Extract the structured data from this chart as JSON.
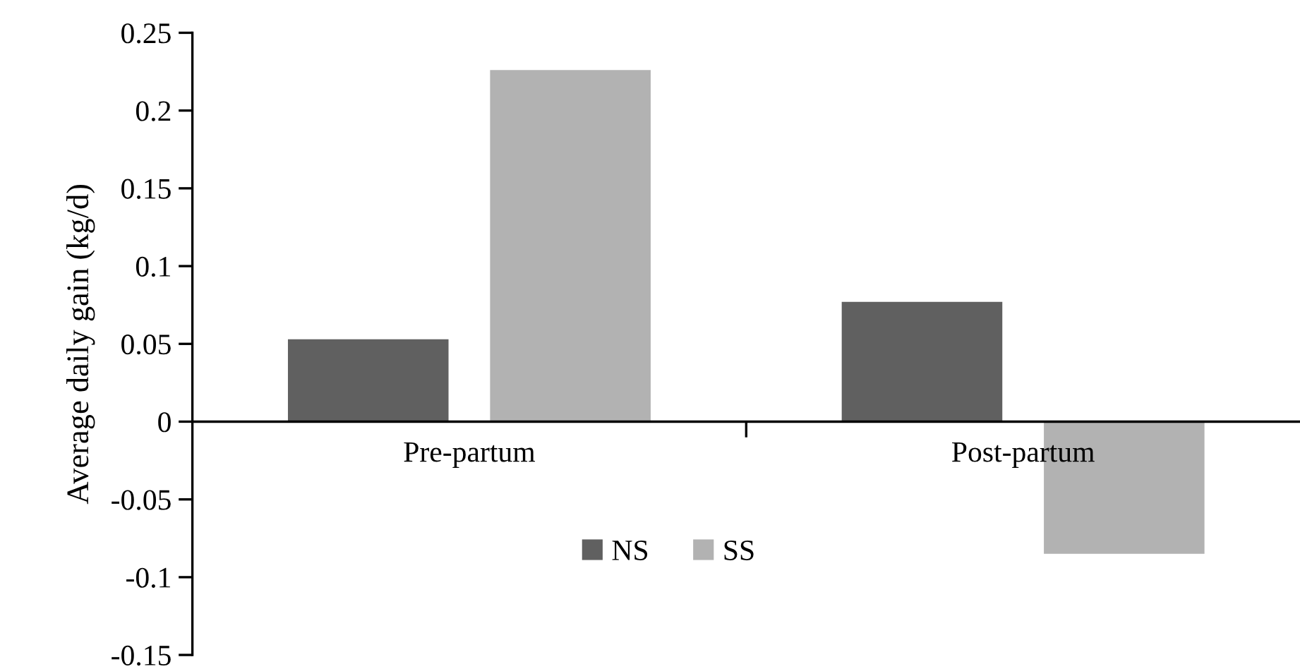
{
  "chart_data": {
    "type": "bar",
    "ylabel": "Average daily gain (kg/d)",
    "categories": [
      "Pre-partum",
      "Post-partum"
    ],
    "series": [
      {
        "name": "NS",
        "color": "#606060",
        "values": [
          0.053,
          0.077
        ]
      },
      {
        "name": "SS",
        "color": "#b2b2b2",
        "values": [
          0.226,
          -0.085
        ]
      }
    ],
    "ylim": [
      -0.15,
      0.25
    ],
    "yticks": [
      -0.15,
      -0.1,
      -0.05,
      0,
      0.05,
      0.1,
      0.15,
      0.2,
      0.25
    ],
    "grid": false,
    "legend": "bottom"
  }
}
